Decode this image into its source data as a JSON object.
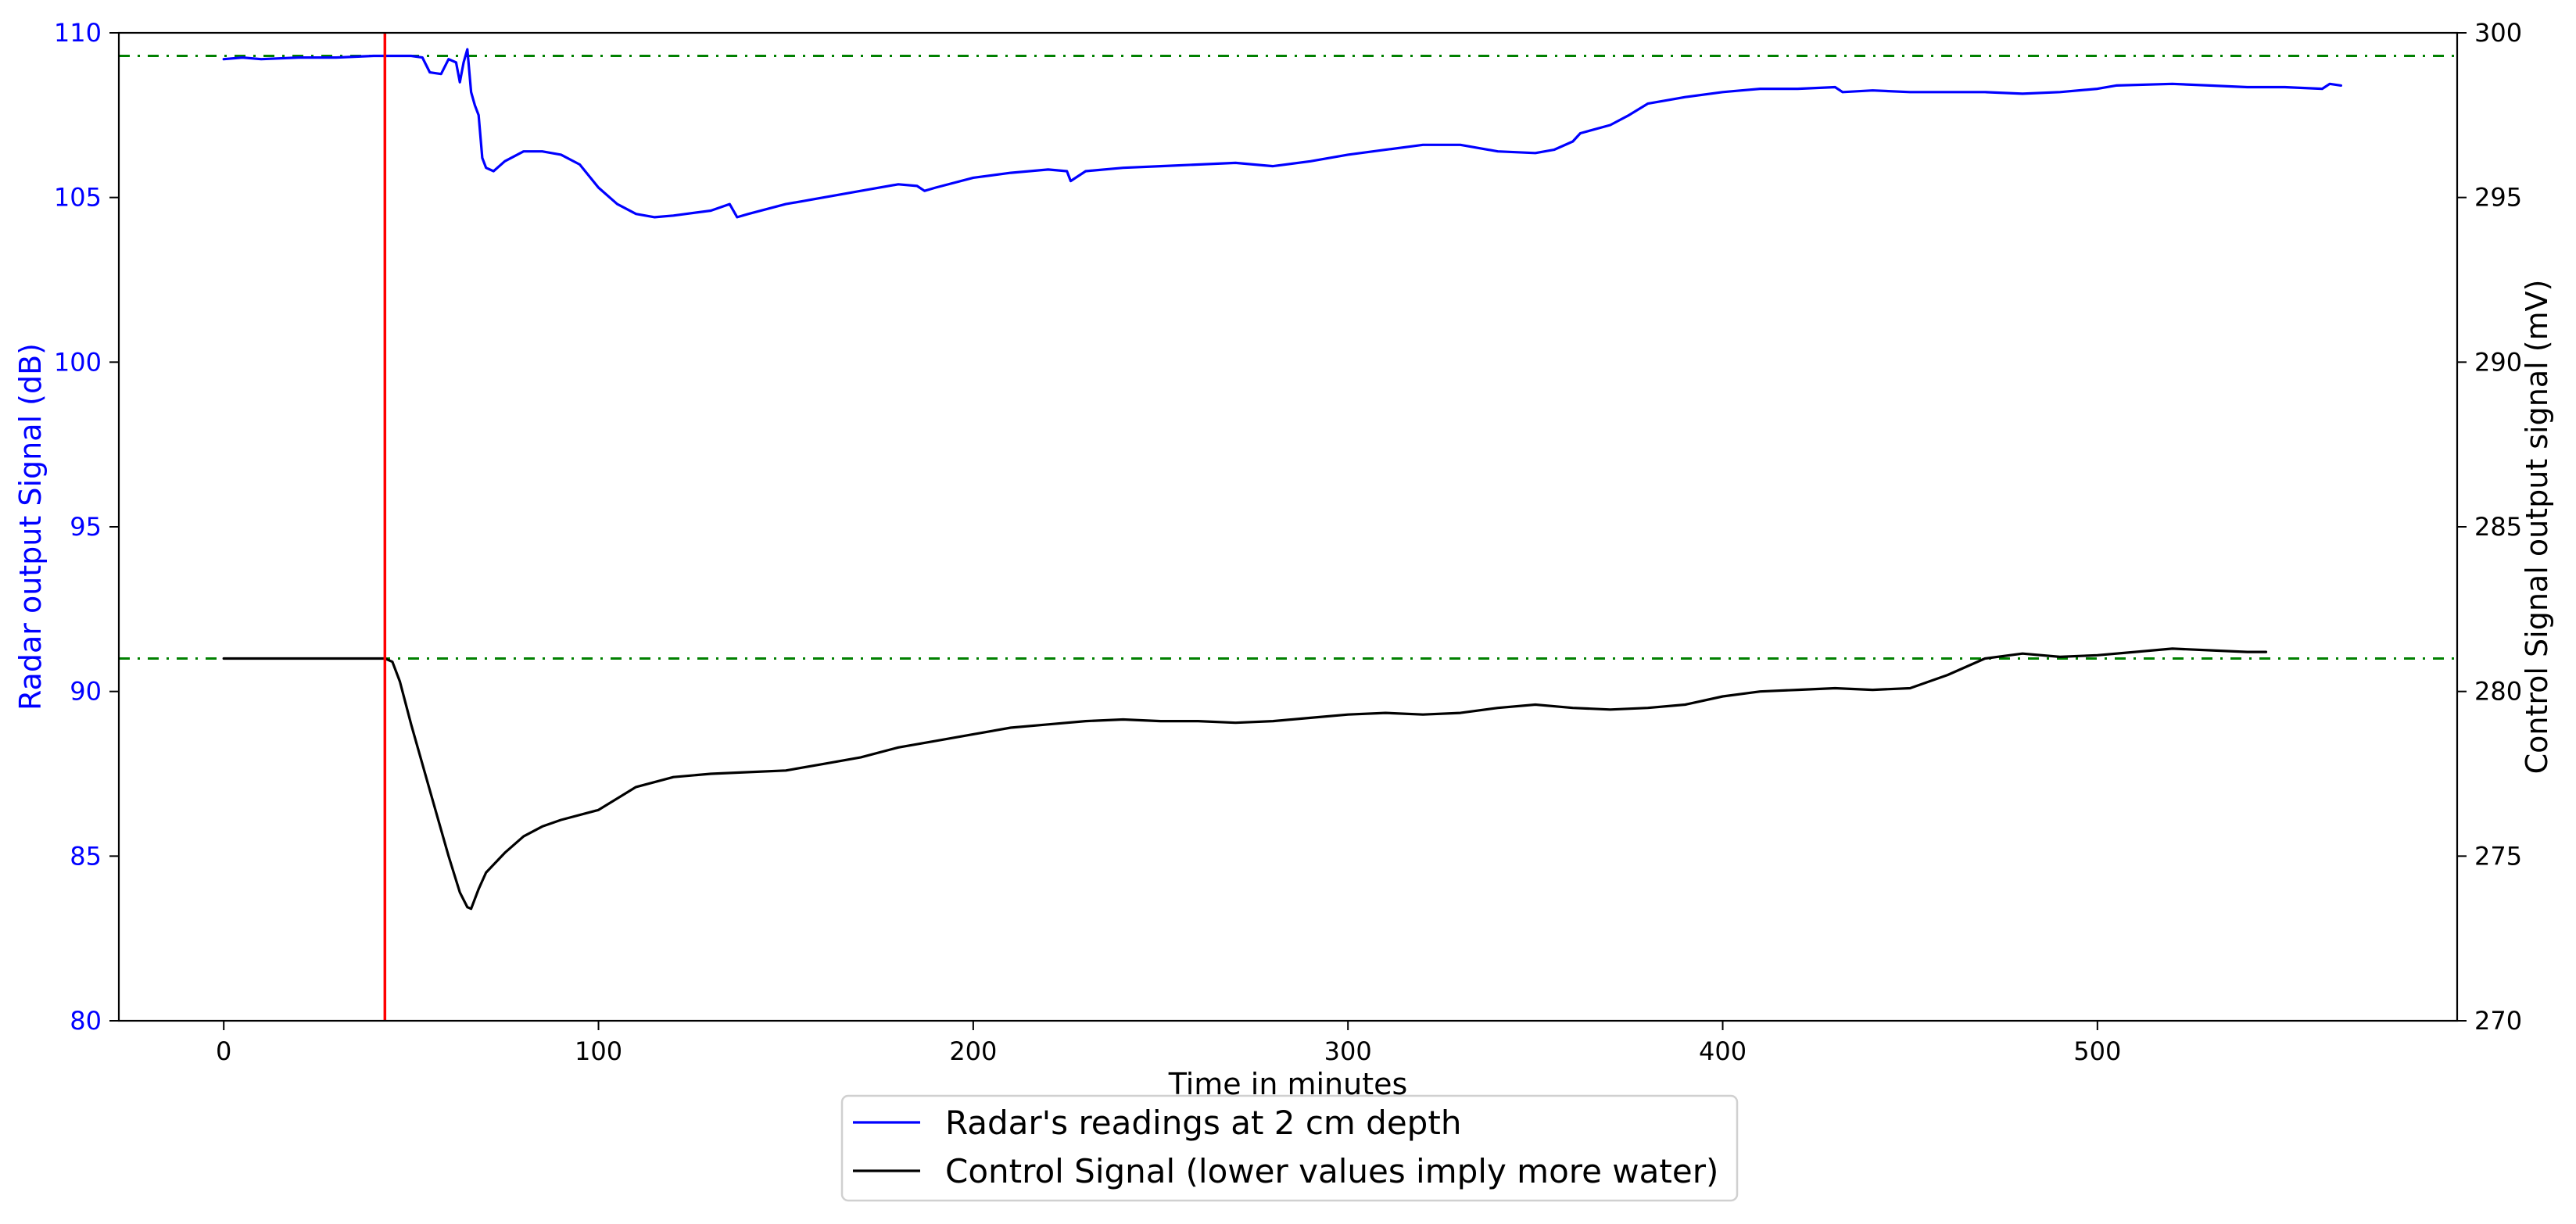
{
  "chart_data": {
    "type": "line",
    "title": "",
    "xlabel": "Time in minutes",
    "ylabel_left": "Radar output Signal (dB)",
    "ylabel_right": "Control Signal output signal (mV)",
    "xlim": [
      -28,
      596
    ],
    "ylim_left": [
      80,
      110
    ],
    "ylim_right": [
      270,
      300
    ],
    "x_ticks": [
      0,
      100,
      200,
      300,
      400,
      500
    ],
    "y_ticks_left": [
      80,
      85,
      90,
      95,
      100,
      105,
      110
    ],
    "y_ticks_right": [
      270,
      275,
      280,
      285,
      290,
      295,
      300
    ],
    "grid": false,
    "legend": {
      "placement": "bottom-center-outside"
    },
    "colors": {
      "radar": "#0000ff",
      "control": "#000000",
      "event_line": "#ff0000",
      "reference_lines": "#008000",
      "left_axis_text": "#0000ff"
    },
    "event_line_x": 43,
    "reference_lines": [
      {
        "axis": "left",
        "y": 109.3
      },
      {
        "axis": "right",
        "y": 281.0
      }
    ],
    "series": [
      {
        "name": "Radar's readings at 2 cm depth",
        "axis": "left",
        "x": [
          0,
          5,
          10,
          20,
          30,
          40,
          45,
          50,
          53,
          55,
          58,
          60,
          62,
          63,
          64,
          65,
          66,
          67,
          68,
          69,
          70,
          72,
          75,
          80,
          85,
          90,
          95,
          100,
          105,
          110,
          115,
          120,
          130,
          135,
          137,
          140,
          150,
          155,
          160,
          170,
          180,
          185,
          187,
          190,
          200,
          210,
          220,
          225,
          226,
          230,
          240,
          250,
          260,
          270,
          280,
          290,
          300,
          310,
          320,
          330,
          340,
          350,
          355,
          360,
          362,
          370,
          375,
          380,
          390,
          400,
          405,
          410,
          420,
          430,
          432,
          440,
          450,
          460,
          470,
          480,
          490,
          500,
          505,
          520,
          530,
          540,
          550,
          560,
          562,
          565
        ],
        "values": [
          109.2,
          109.25,
          109.2,
          109.25,
          109.25,
          109.3,
          109.3,
          109.3,
          109.25,
          108.8,
          108.75,
          109.2,
          109.1,
          108.5,
          109.1,
          109.5,
          108.2,
          107.8,
          107.5,
          106.2,
          105.9,
          105.8,
          106.1,
          106.4,
          106.4,
          106.3,
          106.0,
          105.3,
          104.8,
          104.5,
          104.4,
          104.45,
          104.6,
          104.8,
          104.4,
          104.5,
          104.8,
          104.9,
          105.0,
          105.2,
          105.4,
          105.35,
          105.2,
          105.3,
          105.6,
          105.75,
          105.85,
          105.8,
          105.5,
          105.8,
          105.9,
          105.95,
          106.0,
          106.05,
          105.95,
          106.1,
          106.3,
          106.45,
          106.6,
          106.6,
          106.4,
          106.35,
          106.45,
          106.7,
          106.95,
          107.2,
          107.5,
          107.85,
          108.05,
          108.2,
          108.25,
          108.3,
          108.3,
          108.35,
          108.2,
          108.25,
          108.2,
          108.2,
          108.2,
          108.15,
          108.2,
          108.3,
          108.4,
          108.45,
          108.4,
          108.35,
          108.35,
          108.3,
          108.45,
          108.4
        ]
      },
      {
        "name": "Control Signal (lower values imply more water)",
        "axis": "right",
        "x": [
          0,
          10,
          20,
          30,
          40,
          43,
          45,
          47,
          50,
          55,
          60,
          63,
          65,
          66,
          68,
          70,
          75,
          80,
          85,
          90,
          100,
          110,
          120,
          130,
          140,
          150,
          160,
          170,
          180,
          190,
          200,
          210,
          220,
          230,
          240,
          250,
          260,
          270,
          280,
          290,
          300,
          310,
          320,
          330,
          340,
          350,
          360,
          370,
          380,
          390,
          400,
          410,
          420,
          430,
          440,
          450,
          460,
          470,
          480,
          490,
          500,
          510,
          520,
          530,
          540,
          545
        ],
        "values": [
          281.0,
          281.0,
          281.0,
          281.0,
          281.0,
          281.0,
          280.9,
          280.3,
          279.0,
          277.0,
          275.0,
          273.9,
          273.45,
          273.4,
          274.0,
          274.5,
          275.1,
          275.6,
          275.9,
          276.1,
          276.4,
          277.1,
          277.4,
          277.5,
          277.55,
          277.6,
          277.8,
          278.0,
          278.3,
          278.5,
          278.7,
          278.9,
          279.0,
          279.1,
          279.15,
          279.1,
          279.1,
          279.05,
          279.1,
          279.2,
          279.3,
          279.35,
          279.3,
          279.35,
          279.5,
          279.6,
          279.5,
          279.45,
          279.5,
          279.6,
          279.85,
          280.0,
          280.05,
          280.1,
          280.05,
          280.1,
          280.5,
          281.0,
          281.15,
          281.05,
          281.1,
          281.2,
          281.3,
          281.25,
          281.2,
          281.2
        ]
      }
    ]
  }
}
